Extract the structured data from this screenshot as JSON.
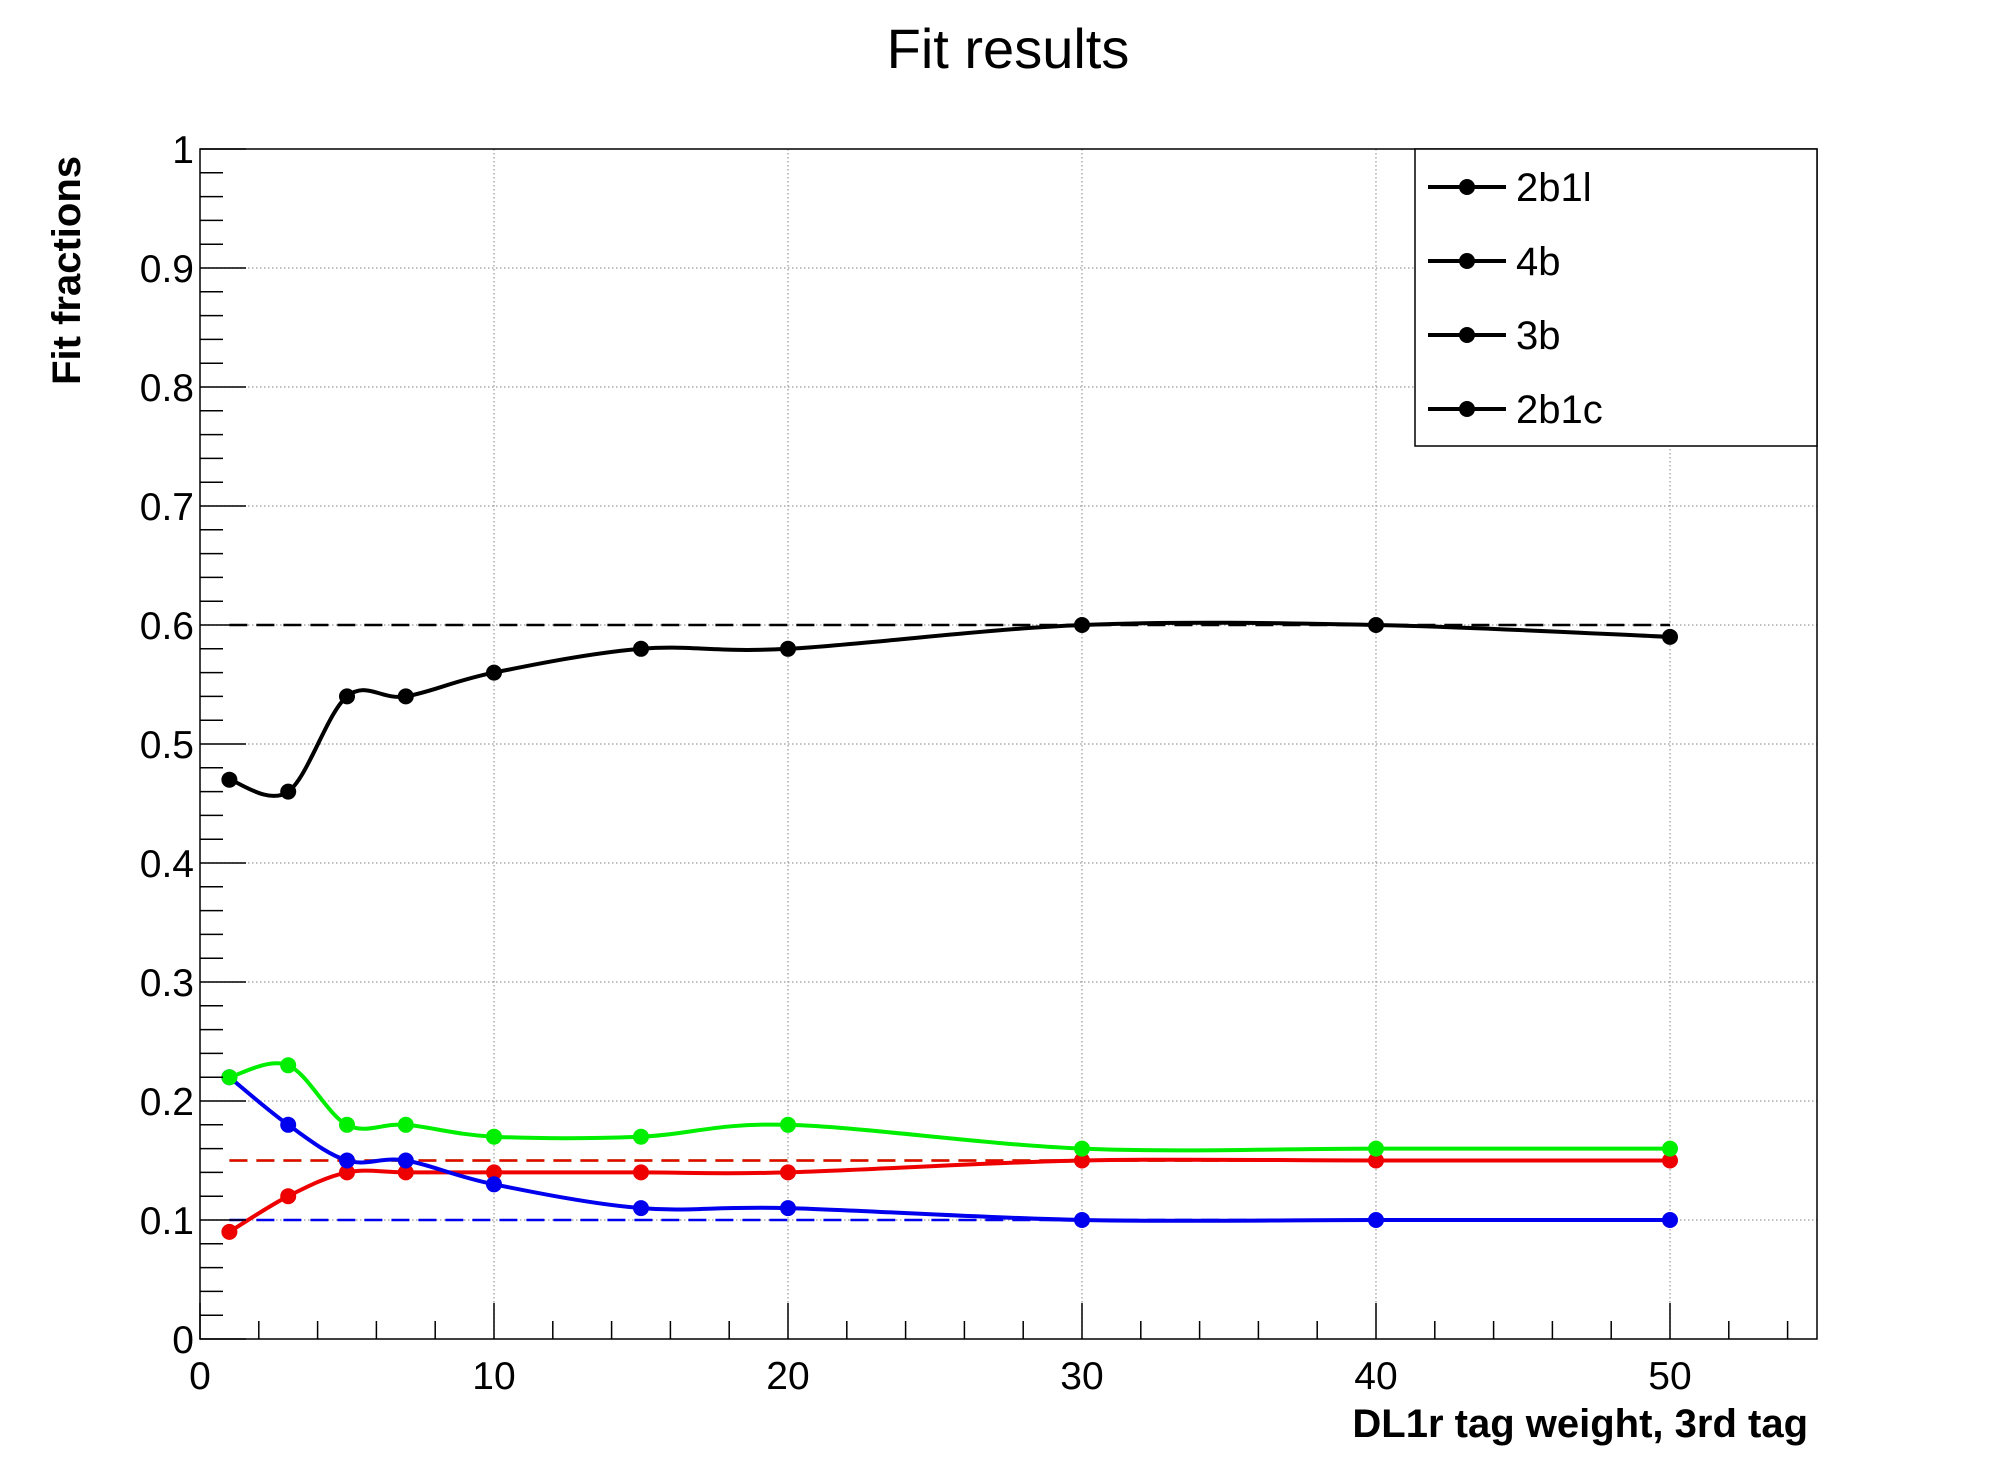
{
  "chart_data": {
    "type": "line",
    "title": "Fit results",
    "xlabel": "DL1r tag weight, 3rd tag",
    "ylabel": "Fit fractions",
    "xlim": [
      0,
      55
    ],
    "ylim": [
      0,
      1
    ],
    "x_ticks": [
      0,
      10,
      20,
      30,
      40,
      50
    ],
    "y_ticks": [
      0,
      0.1,
      0.2,
      0.3,
      0.4,
      0.5,
      0.6,
      0.7,
      0.8,
      0.9,
      1
    ],
    "y_tick_labels": [
      "0",
      "0.1",
      "0.2",
      "0.3",
      "0.4",
      "0.5",
      "0.6",
      "0.7",
      "0.8",
      "0.9",
      "1"
    ],
    "grid": true,
    "legend_position": "top-right",
    "legend": [
      "2b1l",
      "4b",
      "3b",
      "2b1c"
    ],
    "x": [
      1,
      3,
      5,
      7,
      10,
      15,
      20,
      30,
      40,
      50
    ],
    "series": [
      {
        "color": "#000000",
        "values": [
          0.47,
          0.46,
          0.54,
          0.54,
          0.56,
          0.58,
          0.58,
          0.6,
          0.6,
          0.59
        ],
        "reference": 0.6
      },
      {
        "color": "#00ee00",
        "values": [
          0.22,
          0.23,
          0.18,
          0.18,
          0.17,
          0.17,
          0.18,
          0.16,
          0.16,
          0.16
        ],
        "reference": 0.15
      },
      {
        "color": "#0000ee",
        "values": [
          0.22,
          0.18,
          0.15,
          0.15,
          0.13,
          0.11,
          0.11,
          0.1,
          0.1,
          0.1
        ],
        "reference": 0.1
      },
      {
        "color": "#ee0000",
        "values": [
          0.09,
          0.12,
          0.14,
          0.14,
          0.14,
          0.14,
          0.14,
          0.15,
          0.15,
          0.15
        ],
        "reference": 0.15
      }
    ]
  }
}
